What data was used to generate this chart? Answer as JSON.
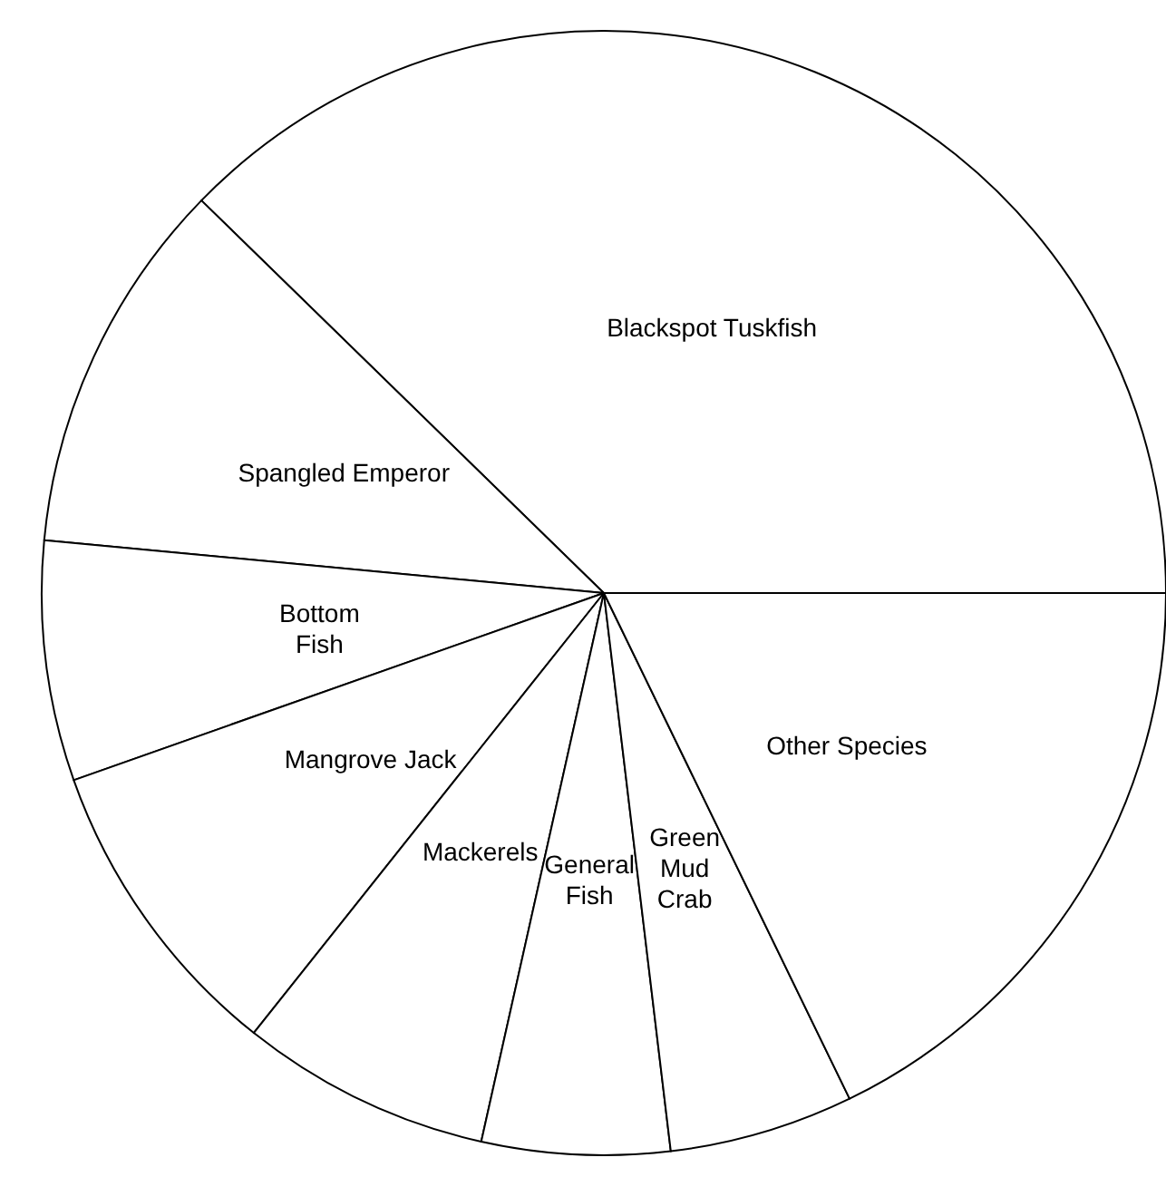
{
  "chart_data": {
    "type": "pie",
    "categories": [
      "Blackspot Tuskfish",
      "Spangled Emperor",
      "Bottom Fish",
      "Mangrove Jack",
      "Mackerels",
      "General Fish",
      "Green Mud Crab",
      "Other Species"
    ],
    "values": [
      37.7,
      10.8,
      6.9,
      8.9,
      7.2,
      5.4,
      5.3,
      17.8
    ],
    "colors": [
      "#ffffff",
      "#ffffff",
      "#ffffff",
      "#ffffff",
      "#ffffff",
      "#ffffff",
      "#ffffff",
      "#ffffff"
    ],
    "legend": false
  }
}
